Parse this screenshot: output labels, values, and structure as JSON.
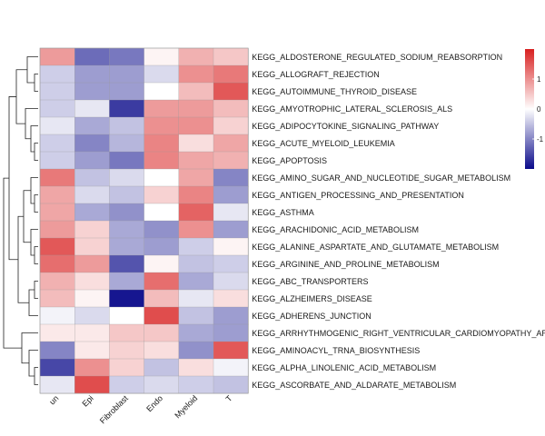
{
  "chart_data": {
    "type": "heatmap",
    "title": "",
    "columns": [
      "un",
      "Epi",
      "Fibroblast",
      "Endo",
      "Myeloid",
      "T"
    ],
    "rows": [
      "KEGG_ALDOSTERONE_REGULATED_SODIUM_REABSORPTION",
      "KEGG_ALLOGRAFT_REJECTION",
      "KEGG_AUTOIMMUNE_THYROID_DISEASE",
      "KEGG_AMYOTROPHIC_LATERAL_SCLEROSIS_ALS",
      "KEGG_ADIPOCYTOKINE_SIGNALING_PATHWAY",
      "KEGG_ACUTE_MYELOID_LEUKEMIA",
      "KEGG_APOPTOSIS",
      "KEGG_AMINO_SUGAR_AND_NUCLEOTIDE_SUGAR_METABOLISM",
      "KEGG_ANTIGEN_PROCESSING_AND_PRESENTATION",
      "KEGG_ASTHMA",
      "KEGG_ARACHIDONIC_ACID_METABOLISM",
      "KEGG_ALANINE_ASPARTATE_AND_GLUTAMATE_METABOLISM",
      "KEGG_ARGININE_AND_PROLINE_METABOLISM",
      "KEGG_ABC_TRANSPORTERS",
      "KEGG_ALZHEIMERS_DISEASE",
      "KEGG_ADHERENS_JUNCTION",
      "KEGG_ARRHYTHMOGENIC_RIGHT_VENTRICULAR_CARDIOMYOPATHY_ARVC",
      "KEGG_AMINOACYL_TRNA_BIOSYNTHESIS",
      "KEGG_ALPHA_LINOLENIC_ACID_METABOLISM",
      "KEGG_ASCORBATE_AND_ALDARATE_METABOLISM"
    ],
    "values": [
      [
        0.9,
        -1.2,
        -1.1,
        0.1,
        0.7,
        0.5
      ],
      [
        -0.4,
        -0.8,
        -0.8,
        -0.3,
        1.0,
        1.2
      ],
      [
        -0.4,
        -0.8,
        -0.8,
        0.0,
        0.6,
        1.5
      ],
      [
        -0.4,
        -0.2,
        -1.6,
        0.9,
        0.9,
        0.6
      ],
      [
        -0.2,
        -0.7,
        -0.5,
        1.0,
        1.0,
        0.4
      ],
      [
        -0.4,
        -1.0,
        -0.6,
        1.1,
        0.3,
        0.8
      ],
      [
        -0.4,
        -0.8,
        -1.1,
        1.1,
        0.8,
        0.7
      ],
      [
        1.2,
        -0.5,
        -0.3,
        0.0,
        0.8,
        -1.0
      ],
      [
        0.8,
        -0.3,
        -0.5,
        0.4,
        1.1,
        -0.8
      ],
      [
        0.8,
        -0.7,
        -0.9,
        0.0,
        1.4,
        -0.2
      ],
      [
        0.9,
        0.4,
        -0.7,
        -0.9,
        1.0,
        -0.8
      ],
      [
        1.5,
        0.4,
        -0.7,
        -0.8,
        -0.4,
        0.1
      ],
      [
        1.3,
        0.9,
        -1.4,
        0.1,
        -0.5,
        -0.4
      ],
      [
        0.7,
        0.3,
        -0.7,
        1.3,
        -0.7,
        -0.3
      ],
      [
        0.6,
        0.1,
        -1.9,
        0.6,
        -0.2,
        0.3
      ],
      [
        -0.1,
        -0.3,
        0.0,
        1.6,
        -0.5,
        -0.8
      ],
      [
        0.2,
        0.2,
        0.5,
        0.5,
        -0.7,
        -0.8
      ],
      [
        -1.0,
        0.2,
        0.4,
        0.3,
        -0.9,
        1.5
      ],
      [
        -1.5,
        1.0,
        0.4,
        -0.5,
        0.3,
        -0.1
      ],
      [
        -0.2,
        1.6,
        -0.4,
        -0.3,
        -0.4,
        -0.5
      ]
    ],
    "color_scale": {
      "low": "#0a0a8a",
      "mid": "#ffffff",
      "high": "#d82020",
      "range": [
        -2,
        2
      ],
      "ticks": [
        "1",
        "0",
        "-1"
      ]
    },
    "row_clustering": "dendrogram-left",
    "legend_placement": "right"
  }
}
